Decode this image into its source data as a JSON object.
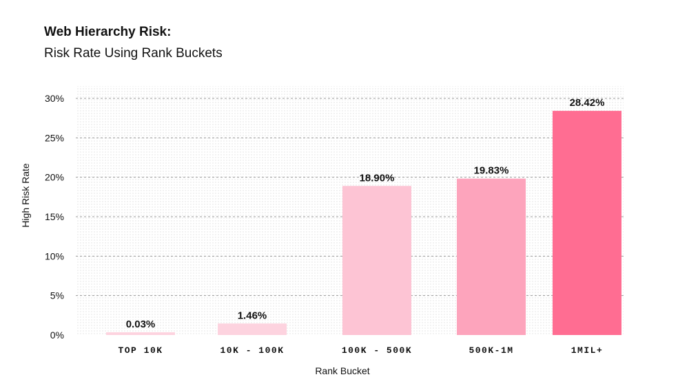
{
  "chart_data": {
    "type": "bar",
    "title": "Web Hierarchy Risk:",
    "subtitle": "Risk Rate Using Rank Buckets",
    "xlabel": "Rank Bucket",
    "ylabel": "High Risk Rate",
    "categories": [
      "TOP 10K",
      "10K - 100K",
      "100K - 500K",
      "500K-1M",
      "1MIL+"
    ],
    "values": [
      0.03,
      1.46,
      18.9,
      19.83,
      28.42
    ],
    "value_labels": [
      "0.03%",
      "1.46%",
      "18.90%",
      "19.83%",
      "28.42%"
    ],
    "ylim": [
      0,
      30
    ],
    "yticks": [
      0,
      5,
      10,
      15,
      20,
      25,
      30
    ],
    "ytick_labels": [
      "0%",
      "5%",
      "10%",
      "15%",
      "20%",
      "25%",
      "30%"
    ],
    "grid": true,
    "bar_colors": [
      "#fdd3df",
      "#fdd3df",
      "#fdc4d4",
      "#fda4bc",
      "#ff6d92"
    ]
  }
}
